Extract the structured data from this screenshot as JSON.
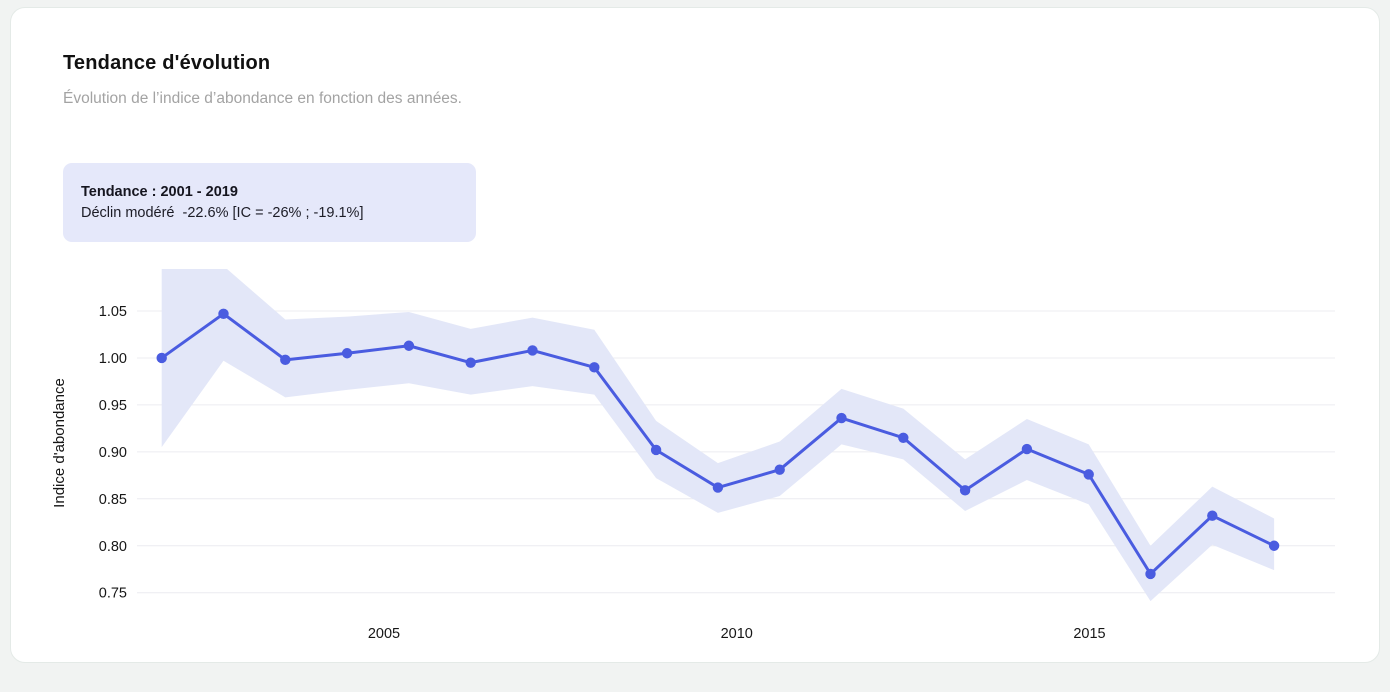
{
  "page": {
    "background": "#f1f3f2"
  },
  "card": {
    "title": "Tendance d'évolution",
    "subtitle": "Évolution de l’indice d’abondance en fonction des années.",
    "badge": {
      "title": "Tendance : 2001 - 2019",
      "detail": "Déclin modéré  -22.6% [IC = -26% ; -19.1%]",
      "background": "#e5e8fa"
    }
  },
  "chart_data": {
    "type": "line",
    "title": "Tendance d'évolution",
    "xlabel": "",
    "ylabel": "Indice d'abondance",
    "x": [
      2001,
      2002,
      2003,
      2004,
      2005,
      2006,
      2007,
      2008,
      2009,
      2010,
      2011,
      2012,
      2013,
      2014,
      2015,
      2016,
      2017,
      2018,
      2019
    ],
    "series": [
      {
        "name": "Indice d'abondance",
        "values": [
          1.0,
          1.047,
          0.998,
          1.005,
          1.013,
          0.995,
          1.008,
          0.99,
          0.902,
          0.862,
          0.881,
          0.936,
          0.915,
          0.859,
          0.903,
          0.876,
          0.77,
          0.832,
          0.8
        ]
      }
    ],
    "band": {
      "name": "Intervalle de confiance",
      "lower": [
        0.905,
        0.997,
        0.958,
        0.966,
        0.973,
        0.961,
        0.97,
        0.961,
        0.872,
        0.835,
        0.853,
        0.908,
        0.892,
        0.837,
        0.87,
        0.844,
        0.741,
        0.801,
        0.774
      ],
      "upper": [
        1.1,
        1.098,
        1.041,
        1.044,
        1.049,
        1.031,
        1.043,
        1.03,
        0.933,
        0.888,
        0.911,
        0.967,
        0.946,
        0.892,
        0.935,
        0.908,
        0.8,
        0.863,
        0.829
      ]
    },
    "x_tick_years": [
      "2005",
      "2010",
      "2015"
    ],
    "y_ticks": [
      "1.05",
      "1.00",
      "0.95",
      "0.90",
      "0.85",
      "0.80",
      "0.75"
    ],
    "ylim": [
      0.73,
      1.094
    ],
    "grid": true,
    "legend": "none",
    "line_color": "#4a5ce0",
    "band_color": "#e3e7f8",
    "grid_color": "#ececf0"
  }
}
